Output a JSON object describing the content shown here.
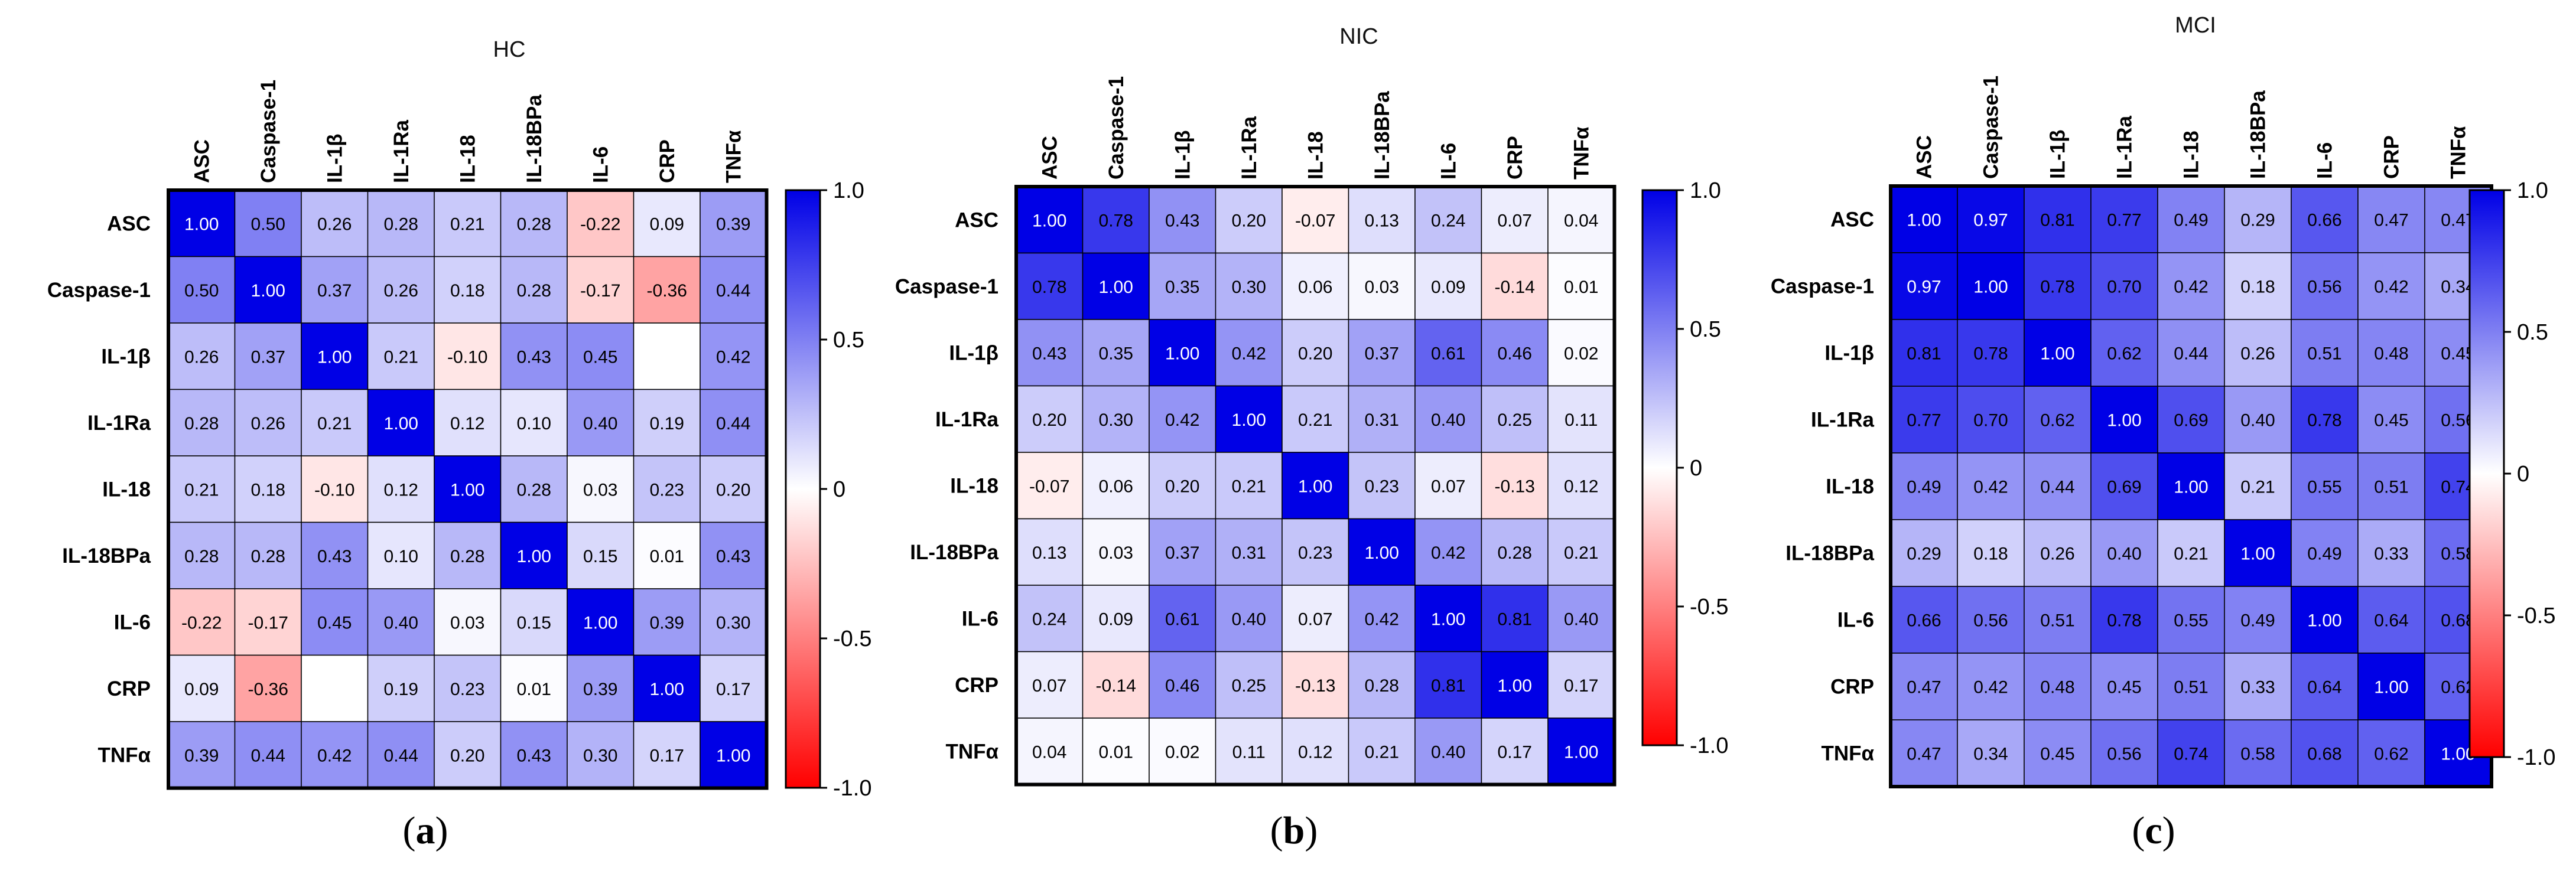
{
  "chart_data": [
    {
      "type": "heatmap",
      "title": "HC",
      "panel_label": "a",
      "variables": [
        "ASC",
        "Caspase-1",
        "IL-1β",
        "IL-1Ra",
        "IL-18",
        "IL-18BPa",
        "IL-6",
        "CRP",
        "TNFα"
      ],
      "values": [
        [
          1.0,
          0.5,
          0.26,
          0.28,
          0.21,
          0.28,
          -0.22,
          0.09,
          0.39
        ],
        [
          0.5,
          1.0,
          0.37,
          0.26,
          0.18,
          0.28,
          -0.17,
          -0.36,
          0.44
        ],
        [
          0.26,
          0.37,
          1.0,
          0.21,
          -0.1,
          0.43,
          0.45,
          null,
          0.42
        ],
        [
          0.28,
          0.26,
          0.21,
          1.0,
          0.12,
          0.1,
          0.4,
          0.19,
          0.44
        ],
        [
          0.21,
          0.18,
          -0.1,
          0.12,
          1.0,
          0.28,
          0.03,
          0.23,
          0.2
        ],
        [
          0.28,
          0.28,
          0.43,
          0.1,
          0.28,
          1.0,
          0.15,
          0.01,
          0.43
        ],
        [
          -0.22,
          -0.17,
          0.45,
          0.4,
          0.03,
          0.15,
          1.0,
          0.39,
          0.3
        ],
        [
          0.09,
          -0.36,
          null,
          0.19,
          0.23,
          0.01,
          0.39,
          1.0,
          0.17
        ],
        [
          0.39,
          0.44,
          0.42,
          0.44,
          0.2,
          0.43,
          0.3,
          0.17,
          1.0
        ]
      ],
      "colorbar": {
        "ticks": [
          "1.0",
          "0.5",
          "0",
          "-0.5",
          "-1.0"
        ],
        "range": [
          -1.0,
          1.0
        ]
      }
    },
    {
      "type": "heatmap",
      "title": "NIC",
      "panel_label": "b",
      "variables": [
        "ASC",
        "Caspase-1",
        "IL-1β",
        "IL-1Ra",
        "IL-18",
        "IL-18BPa",
        "IL-6",
        "CRP",
        "TNFα"
      ],
      "values": [
        [
          1.0,
          0.78,
          0.43,
          0.2,
          -0.07,
          0.13,
          0.24,
          0.07,
          0.04
        ],
        [
          0.78,
          1.0,
          0.35,
          0.3,
          0.06,
          0.03,
          0.09,
          -0.14,
          0.01
        ],
        [
          0.43,
          0.35,
          1.0,
          0.42,
          0.2,
          0.37,
          0.61,
          0.46,
          0.02
        ],
        [
          0.2,
          0.3,
          0.42,
          1.0,
          0.21,
          0.31,
          0.4,
          0.25,
          0.11
        ],
        [
          -0.07,
          0.06,
          0.2,
          0.21,
          1.0,
          0.23,
          0.07,
          -0.13,
          0.12
        ],
        [
          0.13,
          0.03,
          0.37,
          0.31,
          0.23,
          1.0,
          0.42,
          0.28,
          0.21
        ],
        [
          0.24,
          0.09,
          0.61,
          0.4,
          0.07,
          0.42,
          1.0,
          0.81,
          0.4
        ],
        [
          0.07,
          -0.14,
          0.46,
          0.25,
          -0.13,
          0.28,
          0.81,
          1.0,
          0.17
        ],
        [
          0.04,
          0.01,
          0.02,
          0.11,
          0.12,
          0.21,
          0.4,
          0.17,
          1.0
        ]
      ],
      "colorbar": {
        "ticks": [
          "1.0",
          "0.5",
          "0",
          "-0.5",
          "-1.0"
        ],
        "range": [
          -1.0,
          1.0
        ]
      }
    },
    {
      "type": "heatmap",
      "title": "MCI",
      "panel_label": "c",
      "variables": [
        "ASC",
        "Caspase-1",
        "IL-1β",
        "IL-1Ra",
        "IL-18",
        "IL-18BPa",
        "IL-6",
        "CRP",
        "TNFα"
      ],
      "values": [
        [
          1.0,
          0.97,
          0.81,
          0.77,
          0.49,
          0.29,
          0.66,
          0.47,
          0.47
        ],
        [
          0.97,
          1.0,
          0.78,
          0.7,
          0.42,
          0.18,
          0.56,
          0.42,
          0.34
        ],
        [
          0.81,
          0.78,
          1.0,
          0.62,
          0.44,
          0.26,
          0.51,
          0.48,
          0.45
        ],
        [
          0.77,
          0.7,
          0.62,
          1.0,
          0.69,
          0.4,
          0.78,
          0.45,
          0.56
        ],
        [
          0.49,
          0.42,
          0.44,
          0.69,
          1.0,
          0.21,
          0.55,
          0.51,
          0.74
        ],
        [
          0.29,
          0.18,
          0.26,
          0.4,
          0.21,
          1.0,
          0.49,
          0.33,
          0.58
        ],
        [
          0.66,
          0.56,
          0.51,
          0.78,
          0.55,
          0.49,
          1.0,
          0.64,
          0.68
        ],
        [
          0.47,
          0.42,
          0.48,
          0.45,
          0.51,
          0.33,
          0.64,
          1.0,
          0.62
        ],
        [
          0.47,
          0.34,
          0.45,
          0.56,
          0.74,
          0.58,
          0.68,
          0.62,
          1.0
        ]
      ],
      "colorbar": {
        "ticks": [
          "1.0",
          "0.5",
          "0",
          "-0.5",
          "-1.0"
        ],
        "range": [
          -1.0,
          1.0
        ]
      }
    }
  ],
  "colors": {
    "positive": "#0000e6",
    "negative": "#ff0000",
    "zero": "#ffffff"
  }
}
